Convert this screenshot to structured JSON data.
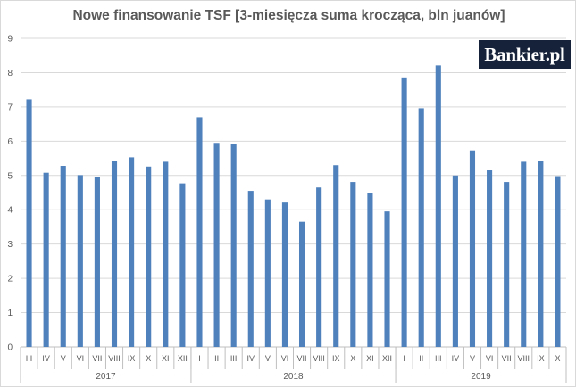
{
  "title": "Nowe finansowanie TSF [3-miesięcza suma krocząca, bln juanów]",
  "logo_text": "Bankier.pl",
  "colors": {
    "bar": "#4f81bd",
    "grid": "#d9d9d9",
    "axis": "#bfbfbf",
    "text": "#595959",
    "logo_bg": "#16223a"
  },
  "chart_data": {
    "type": "bar",
    "title": "Nowe finansowanie TSF [3-miesięcza suma krocząca, bln juanów]",
    "xlabel": "",
    "ylabel": "",
    "ylim": [
      0,
      9
    ],
    "yticks": [
      0,
      1,
      2,
      3,
      4,
      5,
      6,
      7,
      8,
      9
    ],
    "grid": true,
    "legend": "none",
    "groups": [
      {
        "year": "2017",
        "categories": [
          "III",
          "IV",
          "V",
          "VI",
          "VII",
          "VIII",
          "IX",
          "X",
          "XI",
          "XII"
        ],
        "values": [
          7.22,
          5.08,
          5.28,
          5.01,
          4.95,
          5.42,
          5.53,
          5.26,
          5.4,
          4.77
        ]
      },
      {
        "year": "2018",
        "categories": [
          "I",
          "II",
          "III",
          "IV",
          "V",
          "VI",
          "VII",
          "VIII",
          "IX",
          "X",
          "XI",
          "XII"
        ],
        "values": [
          6.7,
          5.95,
          5.93,
          4.55,
          4.3,
          4.21,
          3.65,
          4.65,
          5.3,
          4.81,
          4.48,
          3.95
        ]
      },
      {
        "year": "2019",
        "categories": [
          "I",
          "II",
          "III",
          "IV",
          "V",
          "VI",
          "VII",
          "VIII",
          "IX",
          "X"
        ],
        "values": [
          7.86,
          6.96,
          8.21,
          5.0,
          5.73,
          5.15,
          4.81,
          5.4,
          5.43,
          4.98
        ]
      }
    ]
  }
}
